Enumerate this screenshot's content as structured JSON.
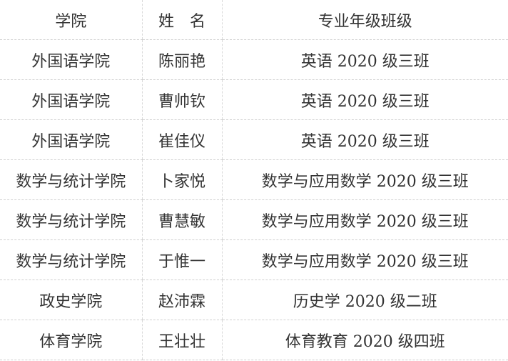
{
  "table": {
    "headers": [
      "学院",
      "姓　名",
      "专业年级班级"
    ],
    "rows": [
      [
        "外国语学院",
        "陈丽艳",
        "英语 2020 级三班"
      ],
      [
        "外国语学院",
        "曹帅钦",
        "英语 2020 级三班"
      ],
      [
        "外国语学院",
        "崔佳仪",
        "英语 2020 级三班"
      ],
      [
        "数学与统计学院",
        "卜家悦",
        "数学与应用数学 2020 级三班"
      ],
      [
        "数学与统计学院",
        "曹慧敏",
        "数学与应用数学 2020 级三班"
      ],
      [
        "数学与统计学院",
        "于惟一",
        "数学与应用数学 2020 级三班"
      ],
      [
        "政史学院",
        "赵沛霖",
        "历史学 2020 级二班"
      ],
      [
        "体育学院",
        "王壮壮",
        "体育教育  2020 级四班"
      ]
    ]
  }
}
